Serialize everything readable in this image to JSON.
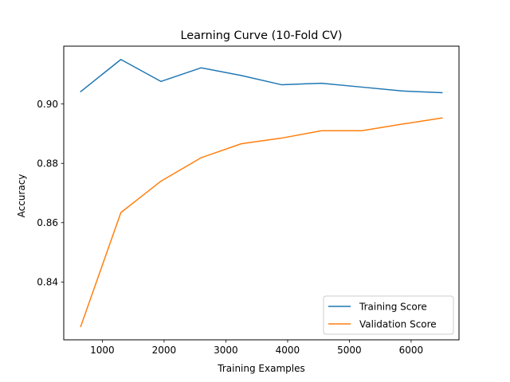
{
  "chart_data": {
    "type": "line",
    "title": "Learning Curve (10-Fold CV)",
    "xlabel": "Training Examples",
    "ylabel": "Accuracy",
    "x": [
      650,
      1300,
      1950,
      2600,
      3250,
      3900,
      4550,
      5200,
      5850,
      6500
    ],
    "series": [
      {
        "name": "Training Score",
        "color": "#1f77b4",
        "values": [
          0.9042,
          0.915,
          0.9076,
          0.9122,
          0.9096,
          0.9065,
          0.907,
          0.9057,
          0.9044,
          0.9038
        ]
      },
      {
        "name": "Validation Score",
        "color": "#ff7f0e",
        "values": [
          0.825,
          0.8634,
          0.874,
          0.8819,
          0.8866,
          0.8885,
          0.891,
          0.891,
          0.8932,
          0.8953
        ]
      }
    ],
    "xlim": [
      375,
      6775
    ],
    "ylim": [
      0.8205,
      0.9195
    ],
    "xticks": [
      1000,
      2000,
      3000,
      4000,
      5000,
      6000
    ],
    "xtick_labels": [
      "1000",
      "2000",
      "3000",
      "4000",
      "5000",
      "6000"
    ],
    "yticks": [
      0.84,
      0.86,
      0.88,
      0.9
    ],
    "ytick_labels": [
      "0.84",
      "0.86",
      "0.88",
      "0.90"
    ],
    "grid": false,
    "legend_position": "lower-right"
  }
}
